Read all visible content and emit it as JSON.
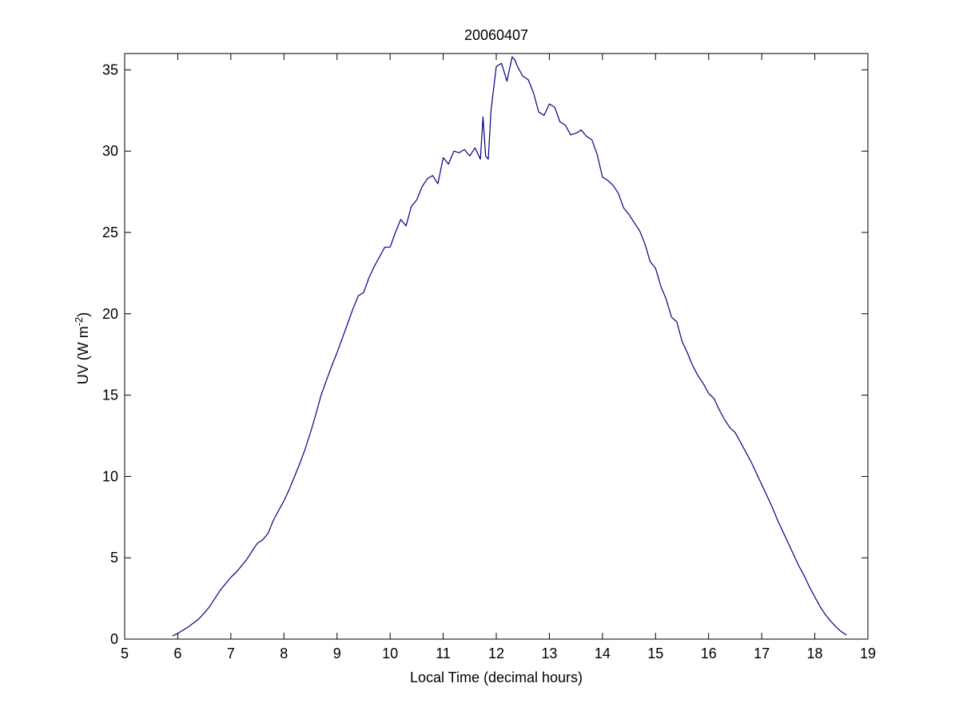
{
  "chart_data": {
    "type": "line",
    "title": "20060407",
    "xlabel": "Local Time (decimal hours)",
    "ylabel_main": "UV (W m",
    "ylabel_superscript": "-2",
    "ylabel_close": ")",
    "xlim": [
      5,
      19
    ],
    "ylim": [
      0,
      36
    ],
    "xticks": [
      5,
      6,
      7,
      8,
      9,
      10,
      11,
      12,
      13,
      14,
      15,
      16,
      17,
      18,
      19
    ],
    "yticks": [
      0,
      5,
      10,
      15,
      20,
      25,
      30,
      35
    ],
    "grid": false,
    "legend": "none",
    "series": [
      {
        "color": "#000080",
        "x": [
          5.9,
          6.0,
          6.1,
          6.2,
          6.3,
          6.4,
          6.5,
          6.6,
          6.7,
          6.8,
          6.9,
          7.0,
          7.1,
          7.2,
          7.3,
          7.4,
          7.5,
          7.6,
          7.7,
          7.8,
          7.9,
          8.0,
          8.1,
          8.2,
          8.3,
          8.4,
          8.5,
          8.6,
          8.7,
          8.8,
          8.9,
          9.0,
          9.1,
          9.2,
          9.3,
          9.4,
          9.5,
          9.6,
          9.7,
          9.8,
          9.9,
          10.0,
          10.1,
          10.2,
          10.3,
          10.4,
          10.5,
          10.6,
          10.7,
          10.8,
          10.9,
          11.0,
          11.1,
          11.2,
          11.3,
          11.4,
          11.5,
          11.6,
          11.7,
          11.75,
          11.8,
          11.85,
          11.9,
          12.0,
          12.1,
          12.2,
          12.3,
          12.35,
          12.4,
          12.5,
          12.6,
          12.7,
          12.8,
          12.9,
          13.0,
          13.1,
          13.2,
          13.3,
          13.4,
          13.5,
          13.6,
          13.7,
          13.8,
          13.9,
          14.0,
          14.1,
          14.2,
          14.3,
          14.4,
          14.5,
          14.6,
          14.7,
          14.8,
          14.9,
          15.0,
          15.1,
          15.2,
          15.3,
          15.4,
          15.5,
          15.6,
          15.7,
          15.8,
          15.9,
          16.0,
          16.1,
          16.2,
          16.3,
          16.4,
          16.5,
          16.6,
          16.7,
          16.8,
          16.9,
          17.0,
          17.1,
          17.2,
          17.3,
          17.4,
          17.5,
          17.6,
          17.7,
          17.8,
          17.9,
          18.0,
          18.1,
          18.2,
          18.3,
          18.4,
          18.5,
          18.6
        ],
        "y": [
          0.2,
          0.35,
          0.55,
          0.75,
          1.0,
          1.25,
          1.6,
          2.0,
          2.5,
          3.0,
          3.4,
          3.8,
          4.1,
          4.5,
          4.9,
          5.4,
          5.9,
          6.1,
          6.5,
          7.3,
          7.9,
          8.5,
          9.2,
          10.0,
          10.8,
          11.7,
          12.7,
          13.8,
          15.0,
          15.9,
          16.8,
          17.6,
          18.5,
          19.4,
          20.3,
          21.1,
          21.3,
          22.2,
          22.9,
          23.5,
          24.1,
          24.1,
          25.0,
          25.8,
          25.4,
          26.6,
          27.0,
          27.8,
          28.3,
          28.5,
          28.0,
          29.6,
          29.2,
          30.0,
          29.9,
          30.1,
          29.7,
          30.2,
          29.5,
          32.1,
          29.7,
          29.5,
          32.5,
          35.2,
          35.4,
          34.3,
          35.8,
          35.6,
          35.2,
          34.6,
          34.4,
          33.6,
          32.4,
          32.2,
          32.9,
          32.7,
          31.8,
          31.6,
          31.0,
          31.1,
          31.3,
          30.9,
          30.7,
          29.8,
          28.4,
          28.2,
          27.9,
          27.4,
          26.5,
          26.1,
          25.6,
          25.1,
          24.3,
          23.2,
          22.8,
          21.7,
          20.9,
          19.8,
          19.5,
          18.3,
          17.6,
          16.8,
          16.2,
          15.7,
          15.1,
          14.8,
          14.1,
          13.5,
          13.0,
          12.7,
          12.1,
          11.5,
          10.9,
          10.2,
          9.5,
          8.8,
          8.1,
          7.3,
          6.6,
          5.9,
          5.2,
          4.5,
          3.9,
          3.2,
          2.6,
          2.0,
          1.5,
          1.1,
          0.75,
          0.45,
          0.25
        ]
      }
    ]
  }
}
